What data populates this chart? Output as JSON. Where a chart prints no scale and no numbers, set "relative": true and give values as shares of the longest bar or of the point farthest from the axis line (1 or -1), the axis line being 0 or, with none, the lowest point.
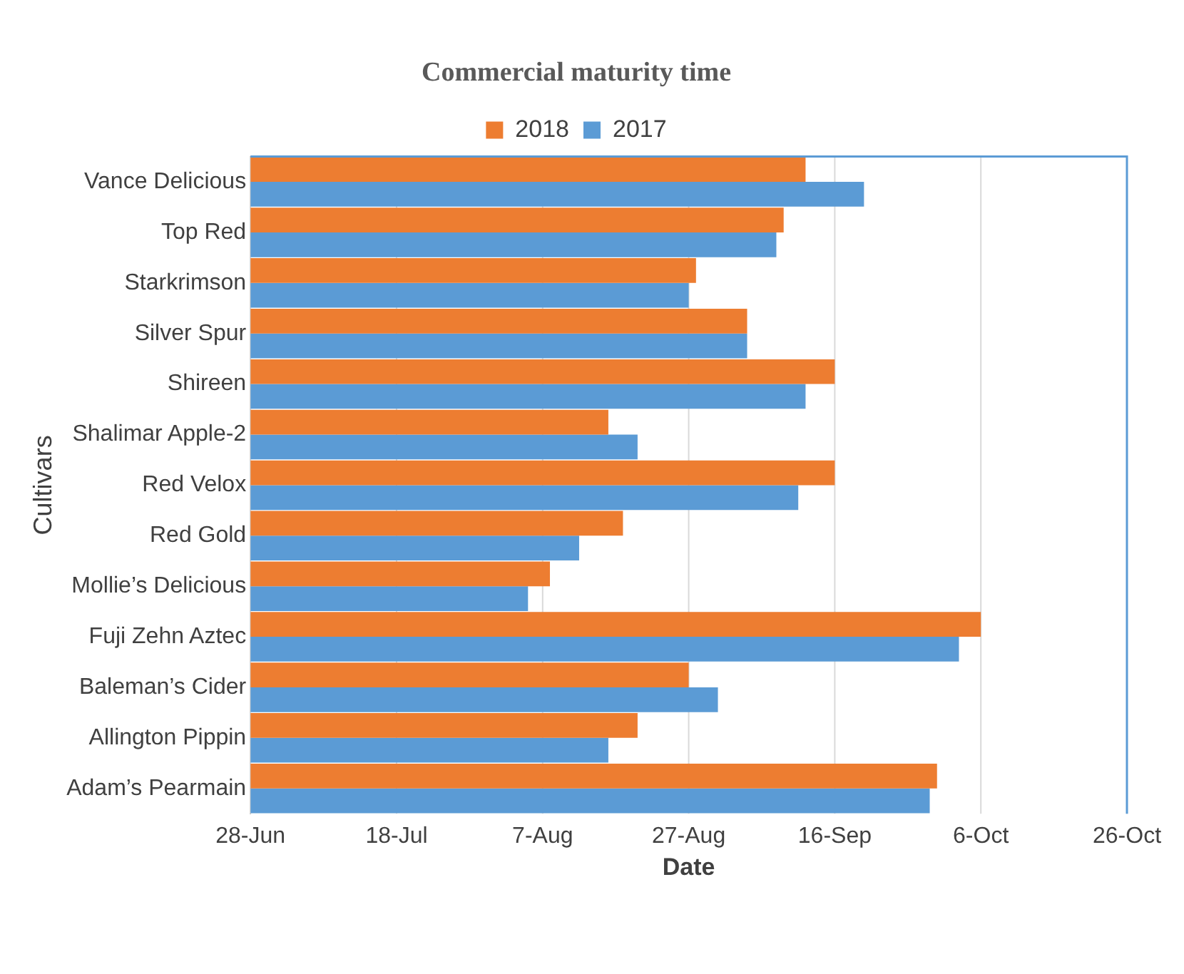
{
  "chart_data": {
    "type": "bar",
    "orientation": "horizontal",
    "relative": true,
    "title": "Commercial maturity time",
    "xlabel": "Date",
    "ylabel": "Cultivars",
    "categories": [
      "Vance Delicious",
      "Top Red",
      "Starkrimson",
      "Silver Spur",
      "Shireen",
      "Shalimar Apple-2",
      "Red Velox",
      "Red Gold",
      "Mollie’s Delicious",
      "Fuji Zehn Aztec",
      "Baleman’s Cider",
      "Allington Pippin",
      "Adam’s Pearmain"
    ],
    "series": [
      {
        "name": "2018",
        "color": "#ed7d31",
        "values": [
          0.76,
          0.73,
          0.61,
          0.68,
          0.8,
          0.49,
          0.8,
          0.51,
          0.41,
          1,
          0.6,
          0.53,
          0.94
        ]
      },
      {
        "name": "2017",
        "color": "#5b9bd5",
        "values": [
          0.84,
          0.72,
          0.6,
          0.68,
          0.76,
          0.53,
          0.75,
          0.45,
          0.38,
          0.97,
          0.64,
          0.49,
          0.93
        ]
      }
    ],
    "annotations": [
      "28-Jun",
      "18-Jul",
      "7-Aug",
      "27-Aug",
      "16-Sep",
      "6-Oct",
      "26-Oct"
    ],
    "grid": "x",
    "legend": "top"
  }
}
